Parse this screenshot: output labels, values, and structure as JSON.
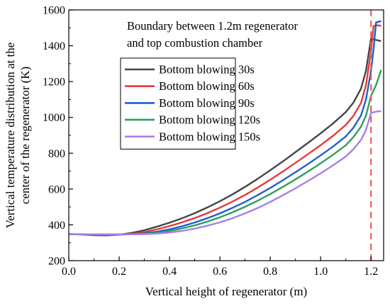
{
  "chart_data": {
    "type": "line",
    "title": "",
    "xlabel": "Vertical height of regenerator (m)",
    "ylabel_lines": [
      "Vertical temperature distribution at the",
      "center of the regenerator (K)"
    ],
    "xlim": [
      0.0,
      1.25
    ],
    "ylim": [
      200,
      1600
    ],
    "x_ticks": [
      "0.0",
      "0.2",
      "0.4",
      "0.6",
      "0.8",
      "1.0",
      "1.2"
    ],
    "y_ticks": [
      "200",
      "400",
      "600",
      "800",
      "1000",
      "1200",
      "1400",
      "1600"
    ],
    "grid": false,
    "legend_position": "upper-left",
    "annotation": {
      "lines": [
        "Boundary between 1.2m regenerator",
        "and top combustion chamber"
      ],
      "x": 1.2,
      "color": "#e8625b"
    },
    "series": [
      {
        "name": "Bottom blowing 30s",
        "color": "#454545",
        "x": [
          0,
          0.05,
          0.1,
          0.15,
          0.2,
          0.25,
          0.3,
          0.35,
          0.4,
          0.45,
          0.5,
          0.55,
          0.6,
          0.65,
          0.7,
          0.75,
          0.8,
          0.85,
          0.9,
          0.95,
          1.0,
          1.05,
          1.1,
          1.13,
          1.16,
          1.18,
          1.2,
          1.22,
          1.24
        ],
        "y": [
          348,
          346,
          342,
          341,
          345,
          355,
          370,
          390,
          412,
          437,
          465,
          497,
          532,
          570,
          612,
          657,
          705,
          754,
          806,
          858,
          911,
          967,
          1030,
          1082,
          1160,
          1260,
          1440,
          1432,
          1426
        ]
      },
      {
        "name": "Bottom blowing 60s",
        "color": "#e33b3b",
        "x": [
          0,
          0.05,
          0.1,
          0.15,
          0.2,
          0.25,
          0.3,
          0.35,
          0.4,
          0.45,
          0.5,
          0.55,
          0.6,
          0.65,
          0.7,
          0.75,
          0.8,
          0.85,
          0.9,
          0.95,
          1.0,
          1.05,
          1.1,
          1.13,
          1.16,
          1.18,
          1.2,
          1.21,
          1.22,
          1.24
        ],
        "y": [
          348,
          347,
          345,
          344,
          345,
          350,
          360,
          375,
          393,
          414,
          438,
          465,
          496,
          530,
          567,
          608,
          652,
          698,
          746,
          795,
          845,
          898,
          958,
          1008,
          1080,
          1180,
          1370,
          1510,
          1514,
          1512
        ]
      },
      {
        "name": "Bottom blowing 90s",
        "color": "#1f5fcf",
        "x": [
          0,
          0.05,
          0.1,
          0.15,
          0.2,
          0.25,
          0.3,
          0.35,
          0.4,
          0.45,
          0.5,
          0.55,
          0.6,
          0.65,
          0.7,
          0.75,
          0.8,
          0.85,
          0.9,
          0.95,
          1.0,
          1.05,
          1.1,
          1.13,
          1.16,
          1.18,
          1.2,
          1.21,
          1.22,
          1.24
        ],
        "y": [
          348,
          347,
          346,
          345,
          346,
          348,
          353,
          362,
          375,
          392,
          413,
          437,
          464,
          495,
          528,
          566,
          606,
          649,
          694,
          740,
          788,
          838,
          894,
          942,
          1010,
          1100,
          1260,
          1380,
          1530,
          1538
        ]
      },
      {
        "name": "Bottom blowing 120s",
        "color": "#2e9e60",
        "x": [
          0,
          0.05,
          0.1,
          0.15,
          0.2,
          0.25,
          0.3,
          0.35,
          0.4,
          0.45,
          0.5,
          0.55,
          0.6,
          0.65,
          0.7,
          0.75,
          0.8,
          0.85,
          0.9,
          0.95,
          1.0,
          1.05,
          1.1,
          1.13,
          1.16,
          1.18,
          1.2,
          1.22,
          1.24
        ],
        "y": [
          348,
          347,
          346,
          346,
          346,
          347,
          350,
          356,
          366,
          380,
          397,
          418,
          442,
          470,
          501,
          535,
          572,
          612,
          654,
          698,
          744,
          792,
          845,
          890,
          948,
          1010,
          1120,
          1180,
          1265
        ]
      },
      {
        "name": "Bottom blowing 150s",
        "color": "#a77fe6",
        "x": [
          0,
          0.05,
          0.1,
          0.15,
          0.2,
          0.25,
          0.3,
          0.35,
          0.4,
          0.45,
          0.5,
          0.55,
          0.6,
          0.65,
          0.7,
          0.75,
          0.8,
          0.85,
          0.9,
          0.95,
          1.0,
          1.05,
          1.1,
          1.13,
          1.16,
          1.18,
          1.2,
          1.22,
          1.24
        ],
        "y": [
          348,
          348,
          347,
          347,
          347,
          347,
          348,
          351,
          357,
          366,
          379,
          395,
          414,
          437,
          464,
          494,
          528,
          565,
          604,
          645,
          688,
          733,
          782,
          822,
          874,
          930,
          1025,
          1032,
          1035
        ]
      }
    ]
  }
}
